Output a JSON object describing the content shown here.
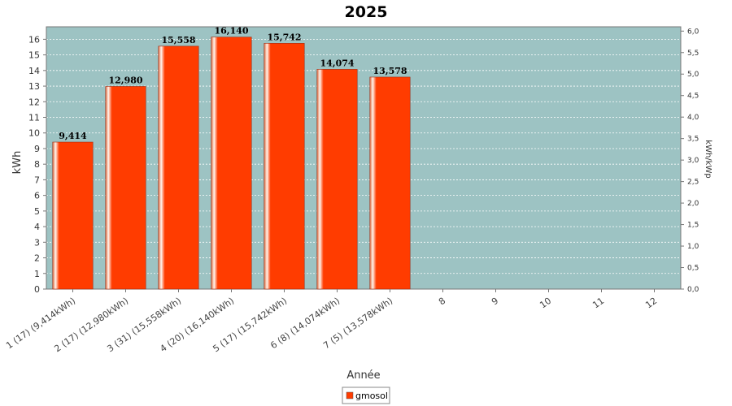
{
  "chart_data": {
    "type": "bar",
    "title": "2025",
    "xlabel": "Année",
    "ylabel": "kWh",
    "y2label": "kWh/kWp",
    "categories": [
      "1 (17)  (9,414kWh)",
      "2 (17)  (12,980kWh)",
      "3 (31)  (15,558kWh)",
      "4 (20)  (16,140kWh)",
      "5 (17)  (15,742kWh)",
      "6 (8)  (14,074kWh)",
      "7 (5)  (13,578kWh)",
      "8",
      "9",
      "10",
      "11",
      "12"
    ],
    "series": [
      {
        "name": "gmosol",
        "color": "#ff3c00",
        "values": [
          9.414,
          12.98,
          15.558,
          16.14,
          15.742,
          14.074,
          13.578,
          null,
          null,
          null,
          null,
          null
        ],
        "labels": [
          "9,414",
          "12,980",
          "15,558",
          "16,140",
          "15,742",
          "14,074",
          "13,578",
          "",
          "",
          "",
          "",
          ""
        ]
      }
    ],
    "ylim": [
      0,
      16.8
    ],
    "yticks": [
      0,
      1,
      2,
      3,
      4,
      5,
      6,
      7,
      8,
      9,
      10,
      11,
      12,
      13,
      14,
      15,
      16
    ],
    "y2lim": [
      0,
      6.1
    ],
    "y2ticks": [
      "0,0",
      "0,5",
      "1,0",
      "1,5",
      "2,0",
      "2,5",
      "3,0",
      "3,5",
      "4,0",
      "4,5",
      "5,0",
      "5,5",
      "6,0"
    ],
    "y2tick_values": [
      0,
      0.5,
      1,
      1.5,
      2,
      2.5,
      3,
      3.5,
      4,
      4.5,
      5,
      5.5,
      6
    ],
    "plot_background": "#9dc3c3",
    "grid": true,
    "legend_position": "bottom"
  }
}
